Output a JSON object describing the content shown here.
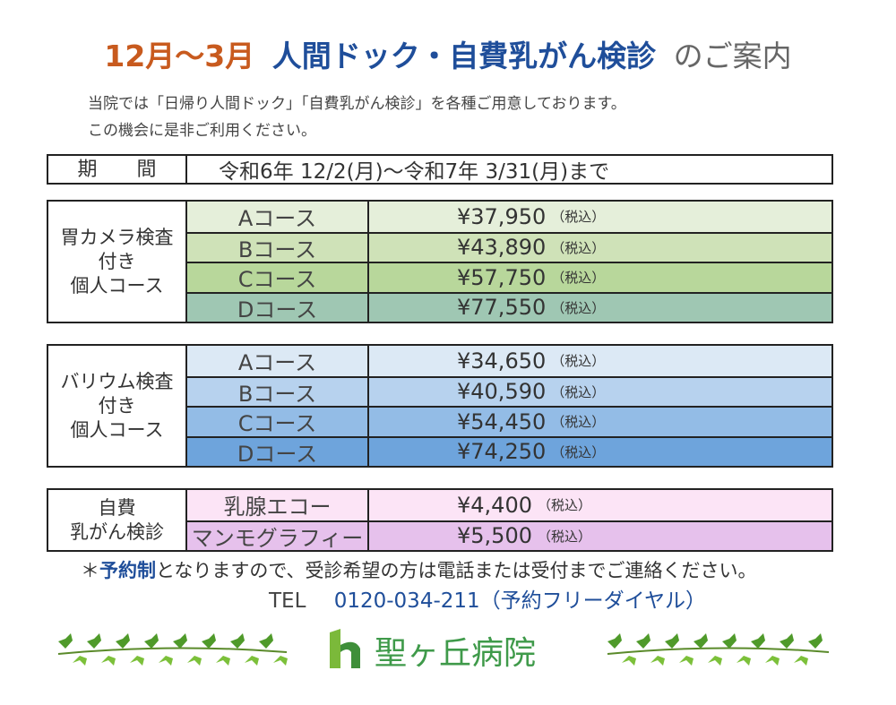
{
  "header": {
    "title_parts": [
      "12月〜3月",
      "人間ドック・自費乳がん検診",
      "のご案内"
    ],
    "intro": [
      "当院では「日帰り人間ドック」「自費乳がん検診」を各種ご用意しております。",
      "この機会に是非ご利用ください。"
    ]
  },
  "period": {
    "label": "期　　間",
    "value": "令和6年 12/2(月)〜令和7年 3/31(月)まで"
  },
  "tax_note": "（税込）",
  "tables": [
    {
      "label": [
        "胃カメラ検査",
        "付き",
        "個人コース"
      ],
      "rows": [
        [
          "Aコース",
          "¥37,950"
        ],
        [
          "Bコース",
          "¥43,890"
        ],
        [
          "Cコース",
          "¥57,750"
        ],
        [
          "Dコース",
          "¥77,550"
        ]
      ]
    },
    {
      "label": [
        "バリウム検査",
        "付き",
        "個人コース"
      ],
      "rows": [
        [
          "Aコース",
          "¥34,650"
        ],
        [
          "Bコース",
          "¥40,590"
        ],
        [
          "Cコース",
          "¥54,450"
        ],
        [
          "Dコース",
          "¥74,250"
        ]
      ]
    },
    {
      "label": [
        "自費",
        "乳がん検診"
      ],
      "rows": [
        [
          "乳腺エコー",
          "¥4,400"
        ],
        [
          "マンモグラフィー",
          "¥5,500"
        ]
      ]
    }
  ],
  "footer": {
    "note_parts": [
      "＊",
      "予約制",
      "となりますので、受診希望の方は電話または受付までご連絡ください。"
    ],
    "tel_label": "TEL",
    "tel": "0120-034-211（予約フリーダイヤル）",
    "hospital": "聖ヶ丘病院"
  }
}
